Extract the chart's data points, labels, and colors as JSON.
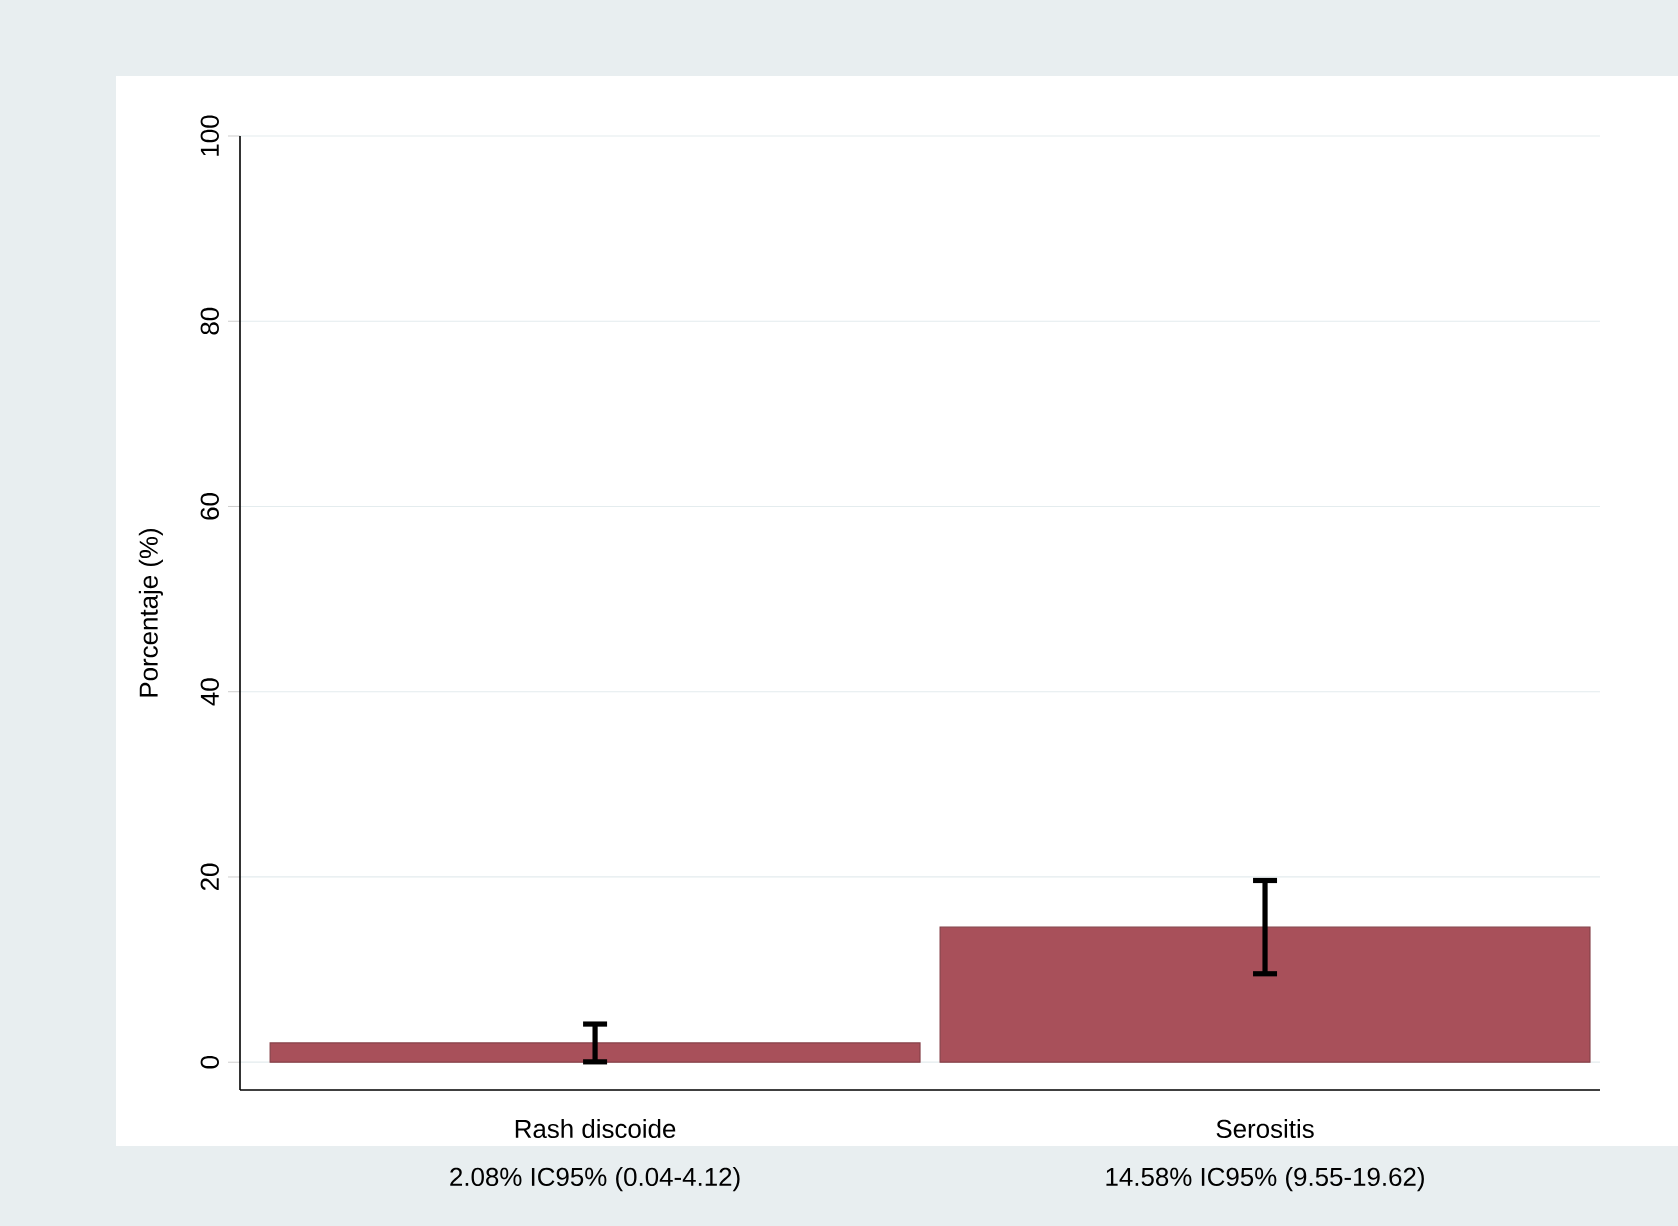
{
  "chart_data": {
    "type": "bar",
    "categories": [
      "Rash discoide",
      "Serositis"
    ],
    "values": [
      2.08,
      14.58
    ],
    "errors": [
      [
        0.04,
        4.12
      ],
      [
        9.55,
        19.62
      ]
    ],
    "color": "#a8505a",
    "ylabel": "Porcentaje (%)",
    "ylim": [
      -3,
      100
    ],
    "yticks": [
      0,
      20,
      40,
      60,
      80,
      100
    ],
    "grid": "y",
    "annotations": [
      "2.08% IC95% (0.04-4.12)",
      "14.58% IC95% (9.55-19.62)"
    ]
  }
}
